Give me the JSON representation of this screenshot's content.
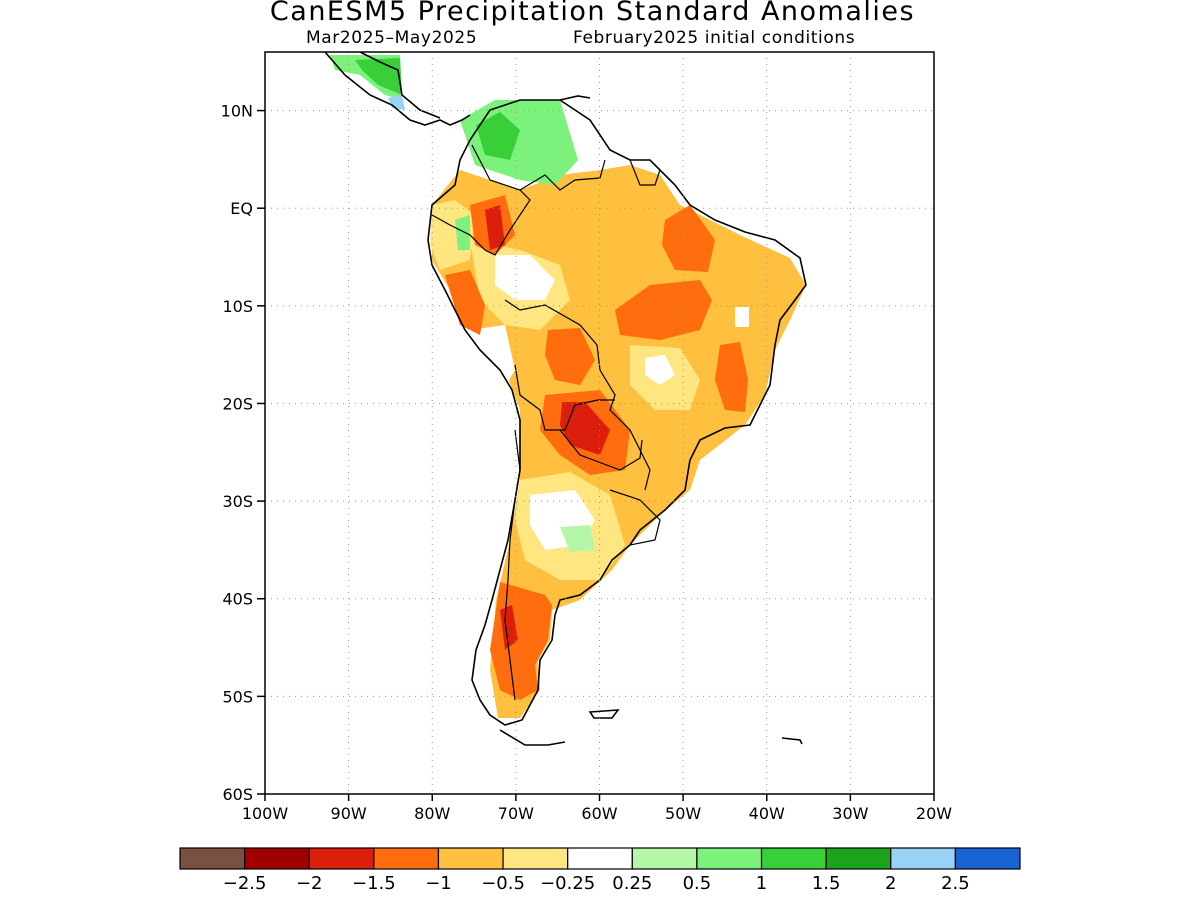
{
  "header": {
    "title": "CanESM5 Precipitation Standard Anomalies",
    "period": "Mar2025–May2025",
    "initial_conditions": "February2025 initial conditions"
  },
  "axes": {
    "lat_labels": [
      "10N",
      "EQ",
      "10S",
      "20S",
      "30S",
      "40S",
      "50S",
      "60S"
    ],
    "lat_values": [
      10,
      0,
      -10,
      -20,
      -30,
      -40,
      -50,
      -60
    ],
    "lon_labels": [
      "100W",
      "90W",
      "80W",
      "70W",
      "60W",
      "50W",
      "40W",
      "30W",
      "20W"
    ],
    "lon_values": [
      -100,
      -90,
      -80,
      -70,
      -60,
      -50,
      -40,
      -30,
      -20
    ],
    "lat_range": [
      -60,
      16
    ],
    "lon_range": [
      -100,
      -20
    ],
    "grid": "dotted"
  },
  "colorbar": {
    "colors": [
      "#7b5043",
      "#a00000",
      "#dc1e0c",
      "#ff6d0e",
      "#ffbf3f",
      "#ffe680",
      "#ffffff",
      "#b4f7a6",
      "#7cf17c",
      "#39cf39",
      "#1ca31c",
      "#98d3f7",
      "#1a63d2"
    ],
    "labels": [
      "-2.5",
      "-2",
      "-1.5",
      "-1",
      "-0.5",
      "-0.25",
      "0.25",
      "0.5",
      "1",
      "1.5",
      "2",
      "2.5"
    ]
  }
}
